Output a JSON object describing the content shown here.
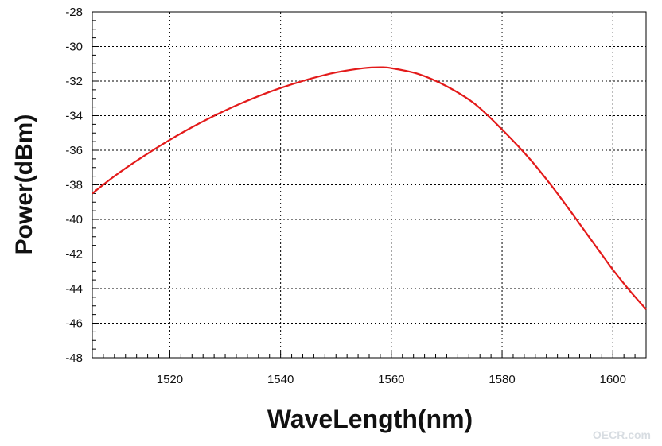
{
  "chart_data": {
    "type": "line",
    "title": "",
    "xlabel": "WaveLength(nm)",
    "ylabel": "Power(dBm)",
    "xlim": [
      1506,
      1606
    ],
    "ylim": [
      -48,
      -28
    ],
    "xticks": [
      1520,
      1540,
      1560,
      1580,
      1600
    ],
    "yticks": [
      -28,
      -30,
      -32,
      -34,
      -36,
      -38,
      -40,
      -42,
      -44,
      -46,
      -48
    ],
    "grid": true,
    "legend": "none",
    "series": [
      {
        "color": "#e31a1a",
        "x": [
          1506,
          1510,
          1515,
          1520,
          1525,
          1530,
          1535,
          1540,
          1545,
          1550,
          1555,
          1558,
          1560,
          1565,
          1570,
          1575,
          1580,
          1585,
          1590,
          1595,
          1600,
          1603,
          1606
        ],
        "y": [
          -38.5,
          -37.5,
          -36.4,
          -35.4,
          -34.5,
          -33.7,
          -33.0,
          -32.4,
          -31.9,
          -31.5,
          -31.25,
          -31.2,
          -31.25,
          -31.6,
          -32.3,
          -33.3,
          -34.8,
          -36.5,
          -38.5,
          -40.7,
          -42.9,
          -44.1,
          -45.2
        ]
      }
    ]
  },
  "watermark": "OECR.com"
}
